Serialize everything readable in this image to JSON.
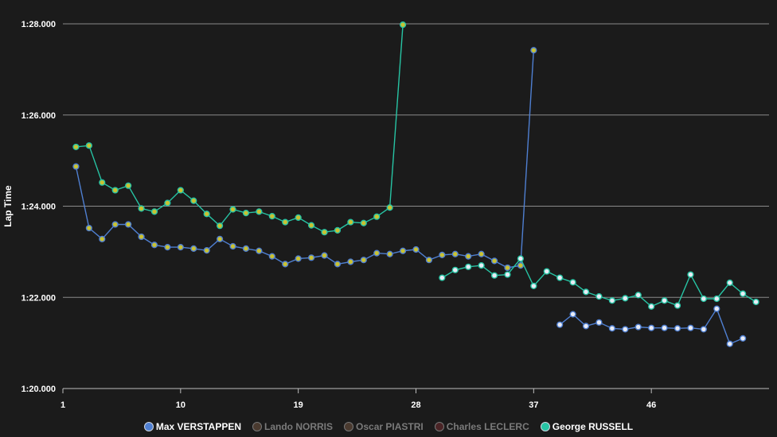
{
  "chart_data": {
    "type": "line",
    "ylabel": "Lap Time",
    "xlabel": "",
    "x_ticks": [
      "1",
      "10",
      "19",
      "28",
      "37",
      "46"
    ],
    "y_ticks": [
      "1:20.000",
      "1:22.000",
      "1:24.000",
      "1:26.000",
      "1:28.000"
    ],
    "xlim": [
      1,
      53
    ],
    "ylim": [
      80,
      88
    ],
    "grid": "horizontal",
    "legend_position": "bottom",
    "series": [
      {
        "name": "Max VERSTAPPEN",
        "color": "#4f7fd1",
        "visible": true,
        "points": [
          [
            2,
            84.87
          ],
          [
            3,
            83.52
          ],
          [
            4,
            83.28
          ],
          [
            5,
            83.6
          ],
          [
            6,
            83.6
          ],
          [
            7,
            83.33
          ],
          [
            8,
            83.15
          ],
          [
            9,
            83.1
          ],
          [
            10,
            83.1
          ],
          [
            11,
            83.07
          ],
          [
            12,
            83.03
          ],
          [
            13,
            83.28
          ],
          [
            14,
            83.12
          ],
          [
            15,
            83.07
          ],
          [
            16,
            83.02
          ],
          [
            17,
            82.9
          ],
          [
            18,
            82.73
          ],
          [
            19,
            82.85
          ],
          [
            20,
            82.87
          ],
          [
            21,
            82.92
          ],
          [
            22,
            82.73
          ],
          [
            23,
            82.78
          ],
          [
            24,
            82.82
          ],
          [
            25,
            82.97
          ],
          [
            26,
            82.95
          ],
          [
            27,
            83.02
          ],
          [
            28,
            83.05
          ],
          [
            29,
            82.82
          ],
          [
            30,
            82.93
          ],
          [
            31,
            82.95
          ],
          [
            32,
            82.9
          ],
          [
            33,
            82.95
          ],
          [
            34,
            82.8
          ],
          [
            35,
            82.65
          ],
          [
            36,
            82.7
          ],
          [
            37,
            87.42
          ],
          [
            38,
            null
          ],
          [
            39,
            81.4
          ],
          [
            40,
            81.63
          ],
          [
            41,
            81.37
          ],
          [
            42,
            81.45
          ],
          [
            43,
            81.32
          ],
          [
            44,
            81.3
          ],
          [
            45,
            81.35
          ],
          [
            46,
            81.33
          ],
          [
            47,
            81.33
          ],
          [
            48,
            81.32
          ],
          [
            49,
            81.33
          ],
          [
            50,
            81.3
          ],
          [
            51,
            81.75
          ],
          [
            52,
            80.98
          ],
          [
            53,
            81.1
          ]
        ]
      },
      {
        "name": "Lando NORRIS",
        "color": "#ff8000",
        "visible": false,
        "points": []
      },
      {
        "name": "Oscar PIASTRI",
        "color": "#ff8000",
        "visible": false,
        "points": []
      },
      {
        "name": "Charles LECLERC",
        "color": "#dc0000",
        "visible": false,
        "points": []
      },
      {
        "name": "George RUSSELL",
        "color": "#27c4a4",
        "visible": true,
        "points": [
          [
            2,
            85.3
          ],
          [
            3,
            85.33
          ],
          [
            4,
            84.52
          ],
          [
            5,
            84.35
          ],
          [
            6,
            84.45
          ],
          [
            7,
            83.95
          ],
          [
            8,
            83.88
          ],
          [
            9,
            84.07
          ],
          [
            10,
            84.35
          ],
          [
            11,
            84.12
          ],
          [
            12,
            83.83
          ],
          [
            13,
            83.57
          ],
          [
            14,
            83.93
          ],
          [
            15,
            83.85
          ],
          [
            16,
            83.88
          ],
          [
            17,
            83.78
          ],
          [
            18,
            83.65
          ],
          [
            19,
            83.75
          ],
          [
            20,
            83.58
          ],
          [
            21,
            83.43
          ],
          [
            22,
            83.47
          ],
          [
            23,
            83.65
          ],
          [
            24,
            83.63
          ],
          [
            25,
            83.77
          ],
          [
            26,
            83.97
          ],
          [
            27,
            87.98
          ],
          [
            28,
            null
          ],
          [
            30,
            82.43
          ],
          [
            31,
            82.6
          ],
          [
            32,
            82.67
          ],
          [
            33,
            82.7
          ],
          [
            34,
            82.48
          ],
          [
            35,
            82.5
          ],
          [
            36,
            82.85
          ],
          [
            37,
            82.25
          ],
          [
            38,
            82.57
          ],
          [
            39,
            82.43
          ],
          [
            40,
            82.33
          ],
          [
            41,
            82.12
          ],
          [
            42,
            82.02
          ],
          [
            43,
            81.93
          ],
          [
            44,
            81.98
          ],
          [
            45,
            82.05
          ],
          [
            46,
            81.8
          ],
          [
            47,
            81.93
          ],
          [
            48,
            81.82
          ],
          [
            49,
            82.5
          ],
          [
            50,
            81.97
          ],
          [
            51,
            81.97
          ],
          [
            52,
            82.32
          ],
          [
            53,
            82.08
          ],
          [
            54,
            81.9
          ]
        ]
      }
    ]
  },
  "marker_colors": {
    "old_tyre_fill": "#c9c232",
    "new_tyre_fill": "#e9ecf5",
    "grid": "#8a8a8a",
    "background": "#1b1b1b"
  }
}
